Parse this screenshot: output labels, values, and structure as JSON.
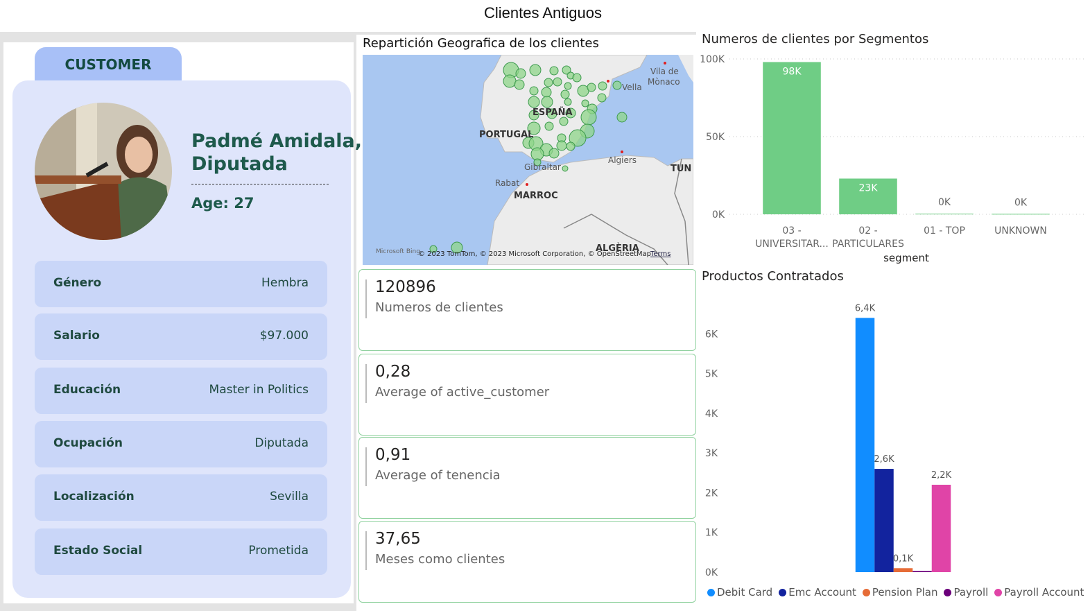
{
  "title": "Clientes Antiguos",
  "customer": {
    "tab": "CUSTOMER",
    "name": "Padmé Amidala,",
    "role": "Diputada",
    "age": "Age: 27",
    "fields": [
      {
        "label": "Género",
        "value": "Hembra"
      },
      {
        "label": "Salario",
        "value": "$97.000"
      },
      {
        "label": "Educación",
        "value": "Master in  Politics"
      },
      {
        "label": "Ocupación",
        "value": "Diputada"
      },
      {
        "label": "Localización",
        "value": "Sevilla"
      },
      {
        "label": "Estado Social",
        "value": "Prometida"
      }
    ]
  },
  "map": {
    "title": "Repartición Geografica de los clientes",
    "labels": [
      "PORTUGAL",
      "ESPAÑA",
      "MARROC",
      "ALGÈRIA",
      "Gibraltar",
      "Rabat",
      "Algiers",
      "Vila de",
      "Mònaco",
      "Vella",
      "TUN"
    ],
    "brand": "Microsoft Bing",
    "attribution": "© 2023 TomTom, © 2023 Microsoft Corporation, © OpenStreetMap",
    "terms": "Terms"
  },
  "kpis": [
    {
      "value": "120896",
      "label": "Numeros de clientes"
    },
    {
      "value": "0,28",
      "label": "Average of active_customer"
    },
    {
      "value": "0,91",
      "label": "Average of tenencia"
    },
    {
      "value": "37,65",
      "label": "Meses como clientes"
    }
  ],
  "chart_data": [
    {
      "type": "bar",
      "title": "Numeros de clientes por Segmentos",
      "x_label": "segment",
      "categories": [
        "03 - UNIVERSITAR...",
        "02 - PARTICULARES",
        "01 - TOP",
        "UNKNOWN"
      ],
      "values": [
        98000,
        23000,
        400,
        300
      ],
      "value_labels": [
        "98K",
        "23K",
        "0K",
        "0K"
      ],
      "color": "#6fcd85",
      "ylim": [
        0,
        100000
      ],
      "yticks": [
        {
          "value": 0,
          "label": "0K"
        },
        {
          "value": 50000,
          "label": "50K"
        },
        {
          "value": 100000,
          "label": "100K"
        }
      ],
      "grid": true
    },
    {
      "type": "bar",
      "title": "Productos Contratados",
      "categories": [
        null
      ],
      "series": [
        {
          "name": "Debit Card",
          "color": "#118dff",
          "values": [
            6400
          ],
          "value_labels": [
            "6,4K"
          ]
        },
        {
          "name": "Emc Account",
          "color": "#12239e",
          "values": [
            2600
          ],
          "value_labels": [
            "2,6K"
          ]
        },
        {
          "name": "Pension Plan",
          "color": "#e66c37",
          "values": [
            100
          ],
          "value_labels": [
            "0,1K"
          ]
        },
        {
          "name": "Payroll",
          "color": "#6b007b",
          "values": [
            30
          ],
          "value_labels": [
            null
          ]
        },
        {
          "name": "Payroll Account",
          "color": "#e044a7",
          "values": [
            2200
          ],
          "value_labels": [
            "2,2K"
          ]
        }
      ],
      "ylim": [
        0,
        7000
      ],
      "yticks": [
        {
          "value": 0,
          "label": "0K"
        },
        {
          "value": 1000,
          "label": "1K"
        },
        {
          "value": 2000,
          "label": "2K"
        },
        {
          "value": 3000,
          "label": "3K"
        },
        {
          "value": 4000,
          "label": "4K"
        },
        {
          "value": 5000,
          "label": "5K"
        },
        {
          "value": 6000,
          "label": "6K"
        }
      ],
      "grid": false,
      "legend": "bottom"
    }
  ]
}
